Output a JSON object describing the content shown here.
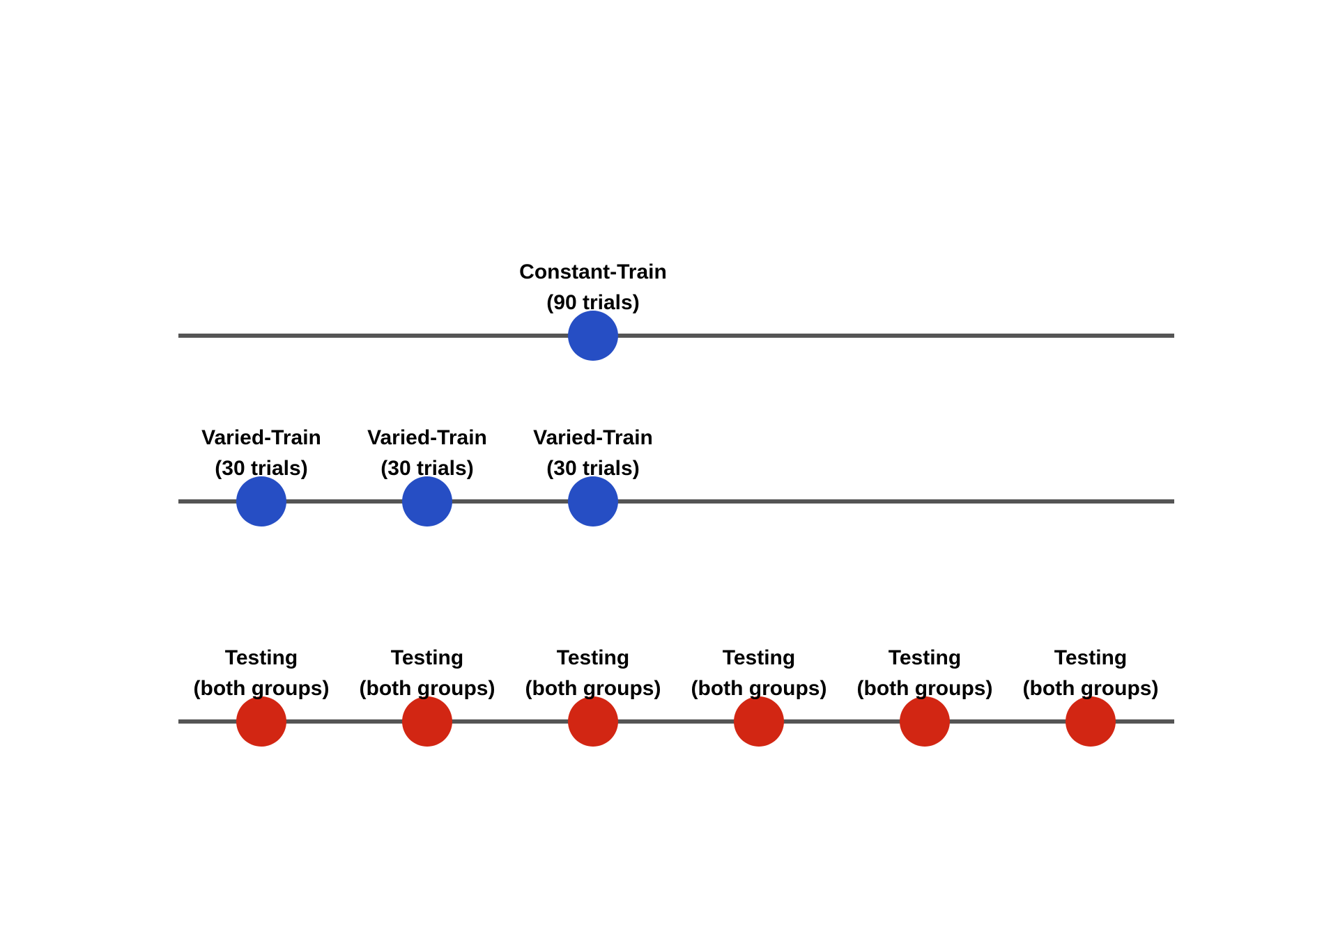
{
  "colors": {
    "training": "#264ec4",
    "testing": "#d22613",
    "track": "#555555",
    "background": "#ffffff"
  },
  "rows": [
    {
      "id": "constant-train",
      "color": "training",
      "nodes": [
        {
          "slot": 3,
          "label_line1": "Constant-Train",
          "label_line2": "(90 trials)"
        }
      ]
    },
    {
      "id": "varied-train",
      "color": "training",
      "nodes": [
        {
          "slot": 1,
          "label_line1": "Varied-Train",
          "label_line2": "(30 trials)"
        },
        {
          "slot": 2,
          "label_line1": "Varied-Train",
          "label_line2": "(30 trials)"
        },
        {
          "slot": 3,
          "label_line1": "Varied-Train",
          "label_line2": "(30 trials)"
        }
      ]
    },
    {
      "id": "testing",
      "color": "testing",
      "nodes": [
        {
          "slot": 1,
          "label_line1": "Testing",
          "label_line2": "(both groups)"
        },
        {
          "slot": 2,
          "label_line1": "Testing",
          "label_line2": "(both groups)"
        },
        {
          "slot": 3,
          "label_line1": "Testing",
          "label_line2": "(both groups)"
        },
        {
          "slot": 4,
          "label_line1": "Testing",
          "label_line2": "(both groups)"
        },
        {
          "slot": 5,
          "label_line1": "Testing",
          "label_line2": "(both groups)"
        },
        {
          "slot": 6,
          "label_line1": "Testing",
          "label_line2": "(both groups)"
        }
      ]
    }
  ]
}
